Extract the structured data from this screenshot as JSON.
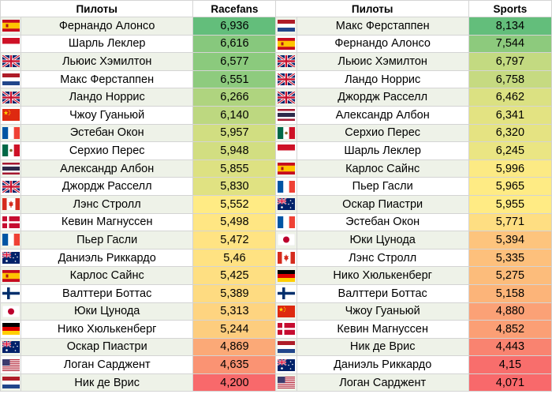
{
  "headers": {
    "left_name": "Пилоты",
    "left_value": "Racefans",
    "right_name": "Пилоты",
    "right_value": "Sports"
  },
  "colors": {
    "scale_high": "#63be7b",
    "scale_mid": "#ffeb84",
    "scale_low": "#f8696b"
  },
  "left_rows": [
    {
      "flag": "spain",
      "name": "Фернандо Алонсо",
      "value": "6,936",
      "num": 6.936
    },
    {
      "flag": "monaco",
      "name": "Шарль Леклер",
      "value": "6,616",
      "num": 6.616
    },
    {
      "flag": "uk",
      "name": "Льюис Хэмилтон",
      "value": "6,577",
      "num": 6.577
    },
    {
      "flag": "netherlands",
      "name": "Макс Ферстаппен",
      "value": "6,551",
      "num": 6.551
    },
    {
      "flag": "uk",
      "name": "Ландо Норрис",
      "value": "6,266",
      "num": 6.266
    },
    {
      "flag": "china",
      "name": "Чжоу Гуаньюй",
      "value": "6,140",
      "num": 6.14
    },
    {
      "flag": "france",
      "name": "Эстебан Окон",
      "value": "5,957",
      "num": 5.957
    },
    {
      "flag": "mexico",
      "name": "Серхио Перес",
      "value": "5,948",
      "num": 5.948
    },
    {
      "flag": "thailand",
      "name": "Александр Албон",
      "value": "5,855",
      "num": 5.855
    },
    {
      "flag": "uk",
      "name": "Джордж Расселл",
      "value": "5,830",
      "num": 5.83
    },
    {
      "flag": "canada",
      "name": "Лэнс Стролл",
      "value": "5,552",
      "num": 5.552
    },
    {
      "flag": "denmark",
      "name": "Кевин Магнуссен",
      "value": "5,498",
      "num": 5.498
    },
    {
      "flag": "france",
      "name": "Пьер Гасли",
      "value": "5,472",
      "num": 5.472
    },
    {
      "flag": "australia",
      "name": "Даниэль Риккардо",
      "value": "5,46",
      "num": 5.46
    },
    {
      "flag": "spain",
      "name": "Карлос Сайнс",
      "value": "5,425",
      "num": 5.425
    },
    {
      "flag": "finland",
      "name": "Валттери Боттас",
      "value": "5,389",
      "num": 5.389
    },
    {
      "flag": "japan",
      "name": "Юки Цунода",
      "value": "5,313",
      "num": 5.313
    },
    {
      "flag": "germany",
      "name": "Нико Хюлькенберг",
      "value": "5,244",
      "num": 5.244
    },
    {
      "flag": "australia",
      "name": "Оскар Пиастри",
      "value": "4,869",
      "num": 4.869
    },
    {
      "flag": "usa",
      "name": "Логан Сарджент",
      "value": "4,635",
      "num": 4.635
    },
    {
      "flag": "netherlands",
      "name": "Ник де Врис",
      "value": "4,200",
      "num": 4.2
    }
  ],
  "right_rows": [
    {
      "flag": "netherlands",
      "name": "Макс Ферстаппен",
      "value": "8,134",
      "num": 8.134
    },
    {
      "flag": "spain",
      "name": "Фернандо Алонсо",
      "value": "7,544",
      "num": 7.544
    },
    {
      "flag": "uk",
      "name": "Льюис Хэмилтон",
      "value": "6,797",
      "num": 6.797
    },
    {
      "flag": "uk",
      "name": "Ландо Норрис",
      "value": "6,758",
      "num": 6.758
    },
    {
      "flag": "uk",
      "name": "Джордж Расселл",
      "value": "6,462",
      "num": 6.462
    },
    {
      "flag": "thailand",
      "name": "Александр Албон",
      "value": "6,341",
      "num": 6.341
    },
    {
      "flag": "mexico",
      "name": "Серхио Перес",
      "value": "6,320",
      "num": 6.32
    },
    {
      "flag": "monaco",
      "name": "Шарль Леклер",
      "value": "6,245",
      "num": 6.245
    },
    {
      "flag": "spain",
      "name": "Карлос Сайнс",
      "value": "5,996",
      "num": 5.996
    },
    {
      "flag": "france",
      "name": "Пьер Гасли",
      "value": "5,965",
      "num": 5.965
    },
    {
      "flag": "australia",
      "name": "Оскар Пиастри",
      "value": "5,955",
      "num": 5.955
    },
    {
      "flag": "france",
      "name": "Эстебан Окон",
      "value": "5,771",
      "num": 5.771
    },
    {
      "flag": "japan",
      "name": "Юки Цунода",
      "value": "5,394",
      "num": 5.394
    },
    {
      "flag": "canada",
      "name": "Лэнс Стролл",
      "value": "5,335",
      "num": 5.335
    },
    {
      "flag": "germany",
      "name": "Нико Хюлькенберг",
      "value": "5,275",
      "num": 5.275
    },
    {
      "flag": "finland",
      "name": "Валттери Боттас",
      "value": "5,158",
      "num": 5.158
    },
    {
      "flag": "china",
      "name": "Чжоу Гуаньюй",
      "value": "4,880",
      "num": 4.88
    },
    {
      "flag": "denmark",
      "name": "Кевин Магнуссен",
      "value": "4,852",
      "num": 4.852
    },
    {
      "flag": "netherlands",
      "name": "Ник де Врис",
      "value": "4,443",
      "num": 4.443
    },
    {
      "flag": "australia",
      "name": "Даниэль Риккардо",
      "value": "4,15",
      "num": 4.15
    },
    {
      "flag": "usa",
      "name": "Логан Сарджент",
      "value": "4,071",
      "num": 4.071
    }
  ]
}
